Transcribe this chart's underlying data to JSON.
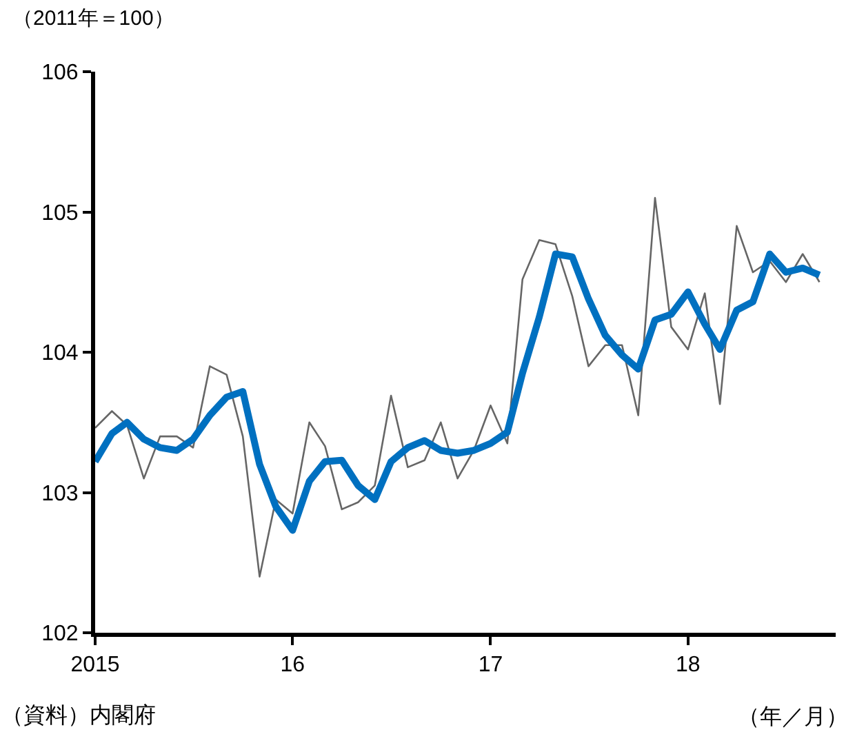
{
  "chart_data": {
    "type": "line",
    "ylabel": "（2011年＝100）",
    "xlabel": "（年／月）",
    "annotations": [
      "（資料）内閣府"
    ],
    "x": [
      "2015-01",
      "2015-02",
      "2015-03",
      "2015-04",
      "2015-05",
      "2015-06",
      "2015-07",
      "2015-08",
      "2015-09",
      "2015-10",
      "2015-11",
      "2015-12",
      "2016-01",
      "2016-02",
      "2016-03",
      "2016-04",
      "2016-05",
      "2016-06",
      "2016-07",
      "2016-08",
      "2016-09",
      "2016-10",
      "2016-11",
      "2016-12",
      "2017-01",
      "2017-02",
      "2017-03",
      "2017-04",
      "2017-05",
      "2017-06",
      "2017-07",
      "2017-08",
      "2017-09",
      "2017-10",
      "2017-11",
      "2017-12",
      "2018-01",
      "2018-02",
      "2018-03",
      "2018-04",
      "2018-05",
      "2018-06",
      "2018-07",
      "2018-08",
      "2018-09"
    ],
    "xlim": [
      "2015-01",
      "2018-10"
    ],
    "xticks": [
      {
        "value": "2015-01",
        "label": "2015"
      },
      {
        "value": "2016-01",
        "label": "16"
      },
      {
        "value": "2017-01",
        "label": "17"
      },
      {
        "value": "2018-01",
        "label": "18"
      }
    ],
    "ylim": [
      102,
      106
    ],
    "yticks": [
      102,
      103,
      104,
      105,
      106
    ],
    "grid": false,
    "marker": "none",
    "line_style": "solid",
    "series": [
      {
        "color": "#666666",
        "values": [
          103.46,
          103.58,
          103.48,
          103.1,
          103.4,
          103.4,
          103.32,
          103.9,
          103.84,
          103.4,
          102.4,
          102.95,
          102.85,
          103.5,
          103.33,
          102.88,
          102.93,
          103.05,
          103.69,
          103.18,
          103.23,
          103.5,
          103.1,
          103.3,
          103.62,
          103.35,
          104.52,
          104.8,
          104.77,
          104.4,
          103.9,
          104.05,
          104.05,
          103.55,
          105.1,
          104.18,
          104.02,
          104.42,
          103.63,
          104.9,
          104.57,
          104.65,
          104.5,
          104.7,
          104.5
        ]
      },
      {
        "color": "#0070c0",
        "values": [
          103.22,
          103.42,
          103.5,
          103.38,
          103.32,
          103.3,
          103.38,
          103.55,
          103.68,
          103.72,
          103.2,
          102.9,
          102.73,
          103.08,
          103.22,
          103.23,
          103.05,
          102.95,
          103.22,
          103.32,
          103.37,
          103.3,
          103.28,
          103.3,
          103.35,
          103.43,
          103.85,
          104.25,
          104.7,
          104.68,
          104.38,
          104.12,
          103.98,
          103.88,
          104.23,
          104.27,
          104.43,
          104.2,
          104.02,
          104.3,
          104.36,
          104.7,
          104.57,
          104.6,
          104.55
        ]
      }
    ]
  }
}
